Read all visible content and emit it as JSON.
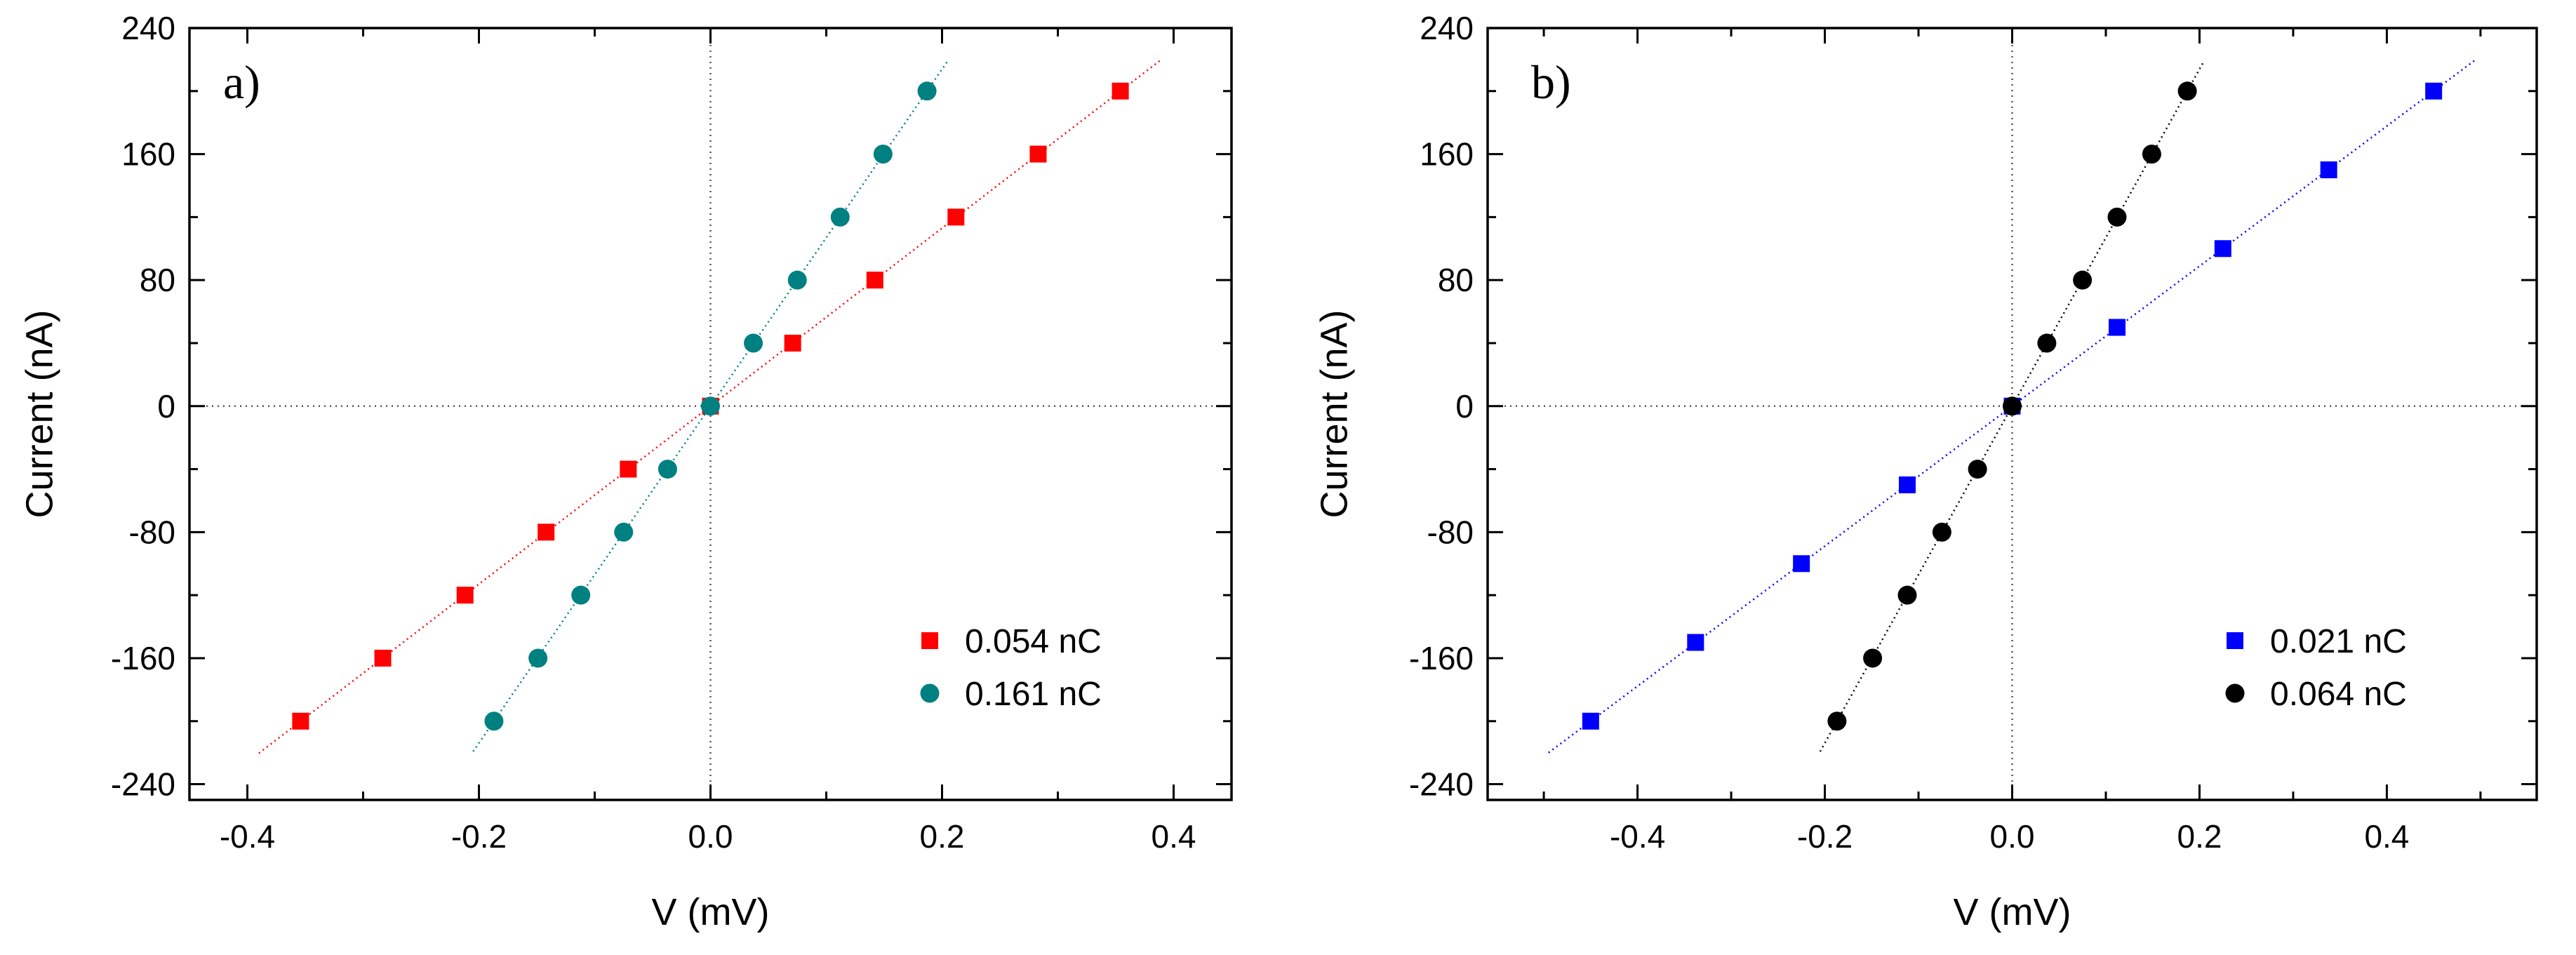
{
  "chart_data": [
    {
      "type": "scatter",
      "panel_label": "a)",
      "xlabel": "V (mV)",
      "ylabel": "Current (nA)",
      "xlim": [
        -0.45,
        0.45
      ],
      "ylim": [
        -250,
        240
      ],
      "xticks": [
        -0.4,
        -0.2,
        0.0,
        0.2,
        0.4
      ],
      "xtick_labels": [
        "-0.4",
        "-0.2",
        "0.0",
        "0.2",
        "0.4"
      ],
      "yticks": [
        -240,
        -160,
        -80,
        0,
        80,
        160,
        240
      ],
      "ytick_labels": [
        "-240",
        "-160",
        "-80",
        "0",
        "80",
        "160",
        "240"
      ],
      "zero_lines": true,
      "legend_position": "bottom-right",
      "series": [
        {
          "name": "0.054 nC",
          "marker": "square",
          "color": "#ff0000",
          "x": [
            -0.354,
            -0.283,
            -0.212,
            -0.142,
            -0.071,
            0.0,
            0.071,
            0.142,
            0.212,
            0.283,
            0.354
          ],
          "y": [
            -200,
            -160,
            -120,
            -80,
            -40,
            0,
            40,
            80,
            120,
            160,
            200
          ],
          "fit_x": [
            -0.39,
            0.39
          ]
        },
        {
          "name": "0.161 nC",
          "marker": "circle",
          "color": "#008080",
          "x": [
            -0.187,
            -0.149,
            -0.112,
            -0.075,
            -0.037,
            0.0,
            0.037,
            0.075,
            0.112,
            0.149,
            0.187
          ],
          "y": [
            -200,
            -160,
            -120,
            -80,
            -40,
            0,
            40,
            80,
            120,
            160,
            200
          ],
          "fit_x": [
            -0.205,
            0.205
          ]
        }
      ]
    },
    {
      "type": "scatter",
      "panel_label": "b)",
      "xlabel": "V (mV)",
      "ylabel": "Current (nA)",
      "xlim": [
        -0.56,
        0.56
      ],
      "ylim": [
        -250,
        240
      ],
      "xticks": [
        -0.4,
        -0.2,
        0.0,
        0.2,
        0.4
      ],
      "xtick_labels": [
        "-0.4",
        "-0.2",
        "0.0",
        "0.2",
        "0.4"
      ],
      "yticks": [
        -240,
        -160,
        -80,
        0,
        80,
        160,
        240
      ],
      "ytick_labels": [
        "-240",
        "-160",
        "-80",
        "0",
        "80",
        "160",
        "240"
      ],
      "zero_lines": true,
      "legend_position": "bottom-right",
      "series": [
        {
          "name": "0.021 nC",
          "marker": "square",
          "color": "#0000ff",
          "x": [
            -0.45,
            -0.338,
            -0.225,
            -0.112,
            0.0,
            0.112,
            0.225,
            0.338,
            0.45
          ],
          "y": [
            -200,
            -150,
            -100,
            -50,
            0,
            50,
            100,
            150,
            200
          ],
          "fit_x": [
            -0.495,
            0.495
          ]
        },
        {
          "name": "0.064 nC",
          "marker": "circle",
          "color": "#000000",
          "x": [
            -0.187,
            -0.149,
            -0.112,
            -0.075,
            -0.037,
            0.0,
            0.037,
            0.075,
            0.112,
            0.149,
            0.187
          ],
          "y": [
            -200,
            -160,
            -120,
            -80,
            -40,
            0,
            40,
            80,
            120,
            160,
            200
          ],
          "fit_x": [
            -0.205,
            0.205
          ]
        }
      ]
    }
  ]
}
